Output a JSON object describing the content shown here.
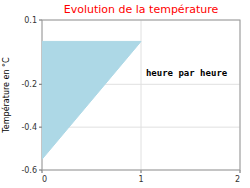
{
  "chart_data": {
    "type": "area",
    "title": "Evolution de la température",
    "ylabel": "Température en °C",
    "annotations": [
      {
        "text": "heure par heure",
        "x": 1.05,
        "y": -0.13
      }
    ],
    "x": [
      0,
      0,
      1,
      0
    ],
    "values": [
      0,
      -0.55,
      0,
      0
    ],
    "color": "#add8e6",
    "xlim": [
      0,
      2
    ],
    "ylim": [
      -0.6,
      0.1
    ],
    "xticks": [
      0,
      1,
      2
    ],
    "yticks": [
      0.1,
      -0.2,
      -0.4,
      -0.6
    ],
    "grid": true
  }
}
